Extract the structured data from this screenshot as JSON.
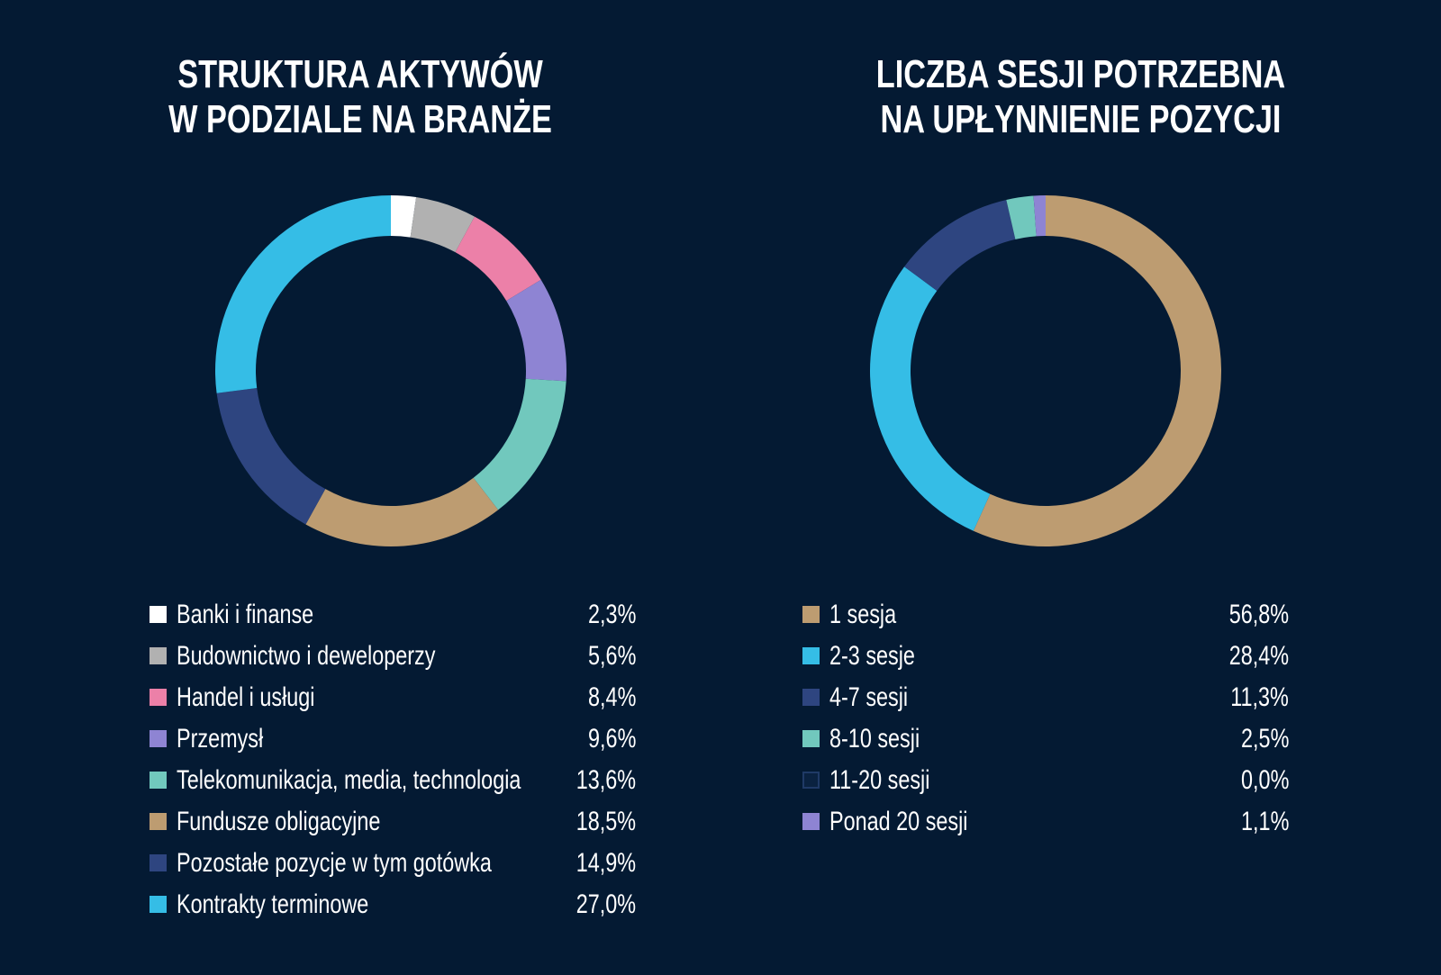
{
  "chart_data": [
    {
      "type": "pie",
      "donut": true,
      "title": [
        "STRUKTURA AKTYWÓW",
        "W PODZIALE NA BRANŻE"
      ],
      "categories": [
        "Banki i finanse",
        "Budownictwo i deweloperzy",
        "Handel i usługi",
        "Przemysł",
        "Telekomunikacja, media, technologia",
        "Fundusze obligacyjne",
        "Pozostałe pozycje w tym gotówka",
        "Kontrakty terminowe"
      ],
      "values": [
        2.3,
        5.6,
        8.4,
        9.6,
        13.6,
        18.5,
        14.9,
        27.0
      ],
      "value_labels": [
        "2,3%",
        "5,6%",
        "8,4%",
        "9,6%",
        "13,6%",
        "18,5%",
        "14,9%",
        "27,0%"
      ],
      "colors": [
        "#ffffff",
        "#b1b1b1",
        "#ec80a8",
        "#8e84d3",
        "#71c8bd",
        "#bd9c71",
        "#2e4580",
        "#35bde6"
      ],
      "unit": "%"
    },
    {
      "type": "pie",
      "donut": true,
      "title": [
        "LICZBA SESJI POTRZEBNA",
        "NA UPŁYNNIENIE POZYCJI"
      ],
      "categories": [
        "1 sesja",
        "2-3 sesje",
        "4-7 sesji",
        "8-10 sesji",
        "11-20 sesji",
        "Ponad 20 sesji"
      ],
      "values": [
        56.8,
        28.4,
        11.3,
        2.5,
        0.0,
        1.1
      ],
      "value_labels": [
        "56,8%",
        "28,4%",
        "11,3%",
        "2,5%",
        "0,0%",
        "1,1%"
      ],
      "colors": [
        "#bd9c71",
        "#35bde6",
        "#2e4580",
        "#71c8bd",
        "#0a2240",
        "#8e84d3"
      ],
      "outlined": [
        false,
        false,
        false,
        false,
        true,
        false
      ],
      "unit": "%"
    }
  ]
}
